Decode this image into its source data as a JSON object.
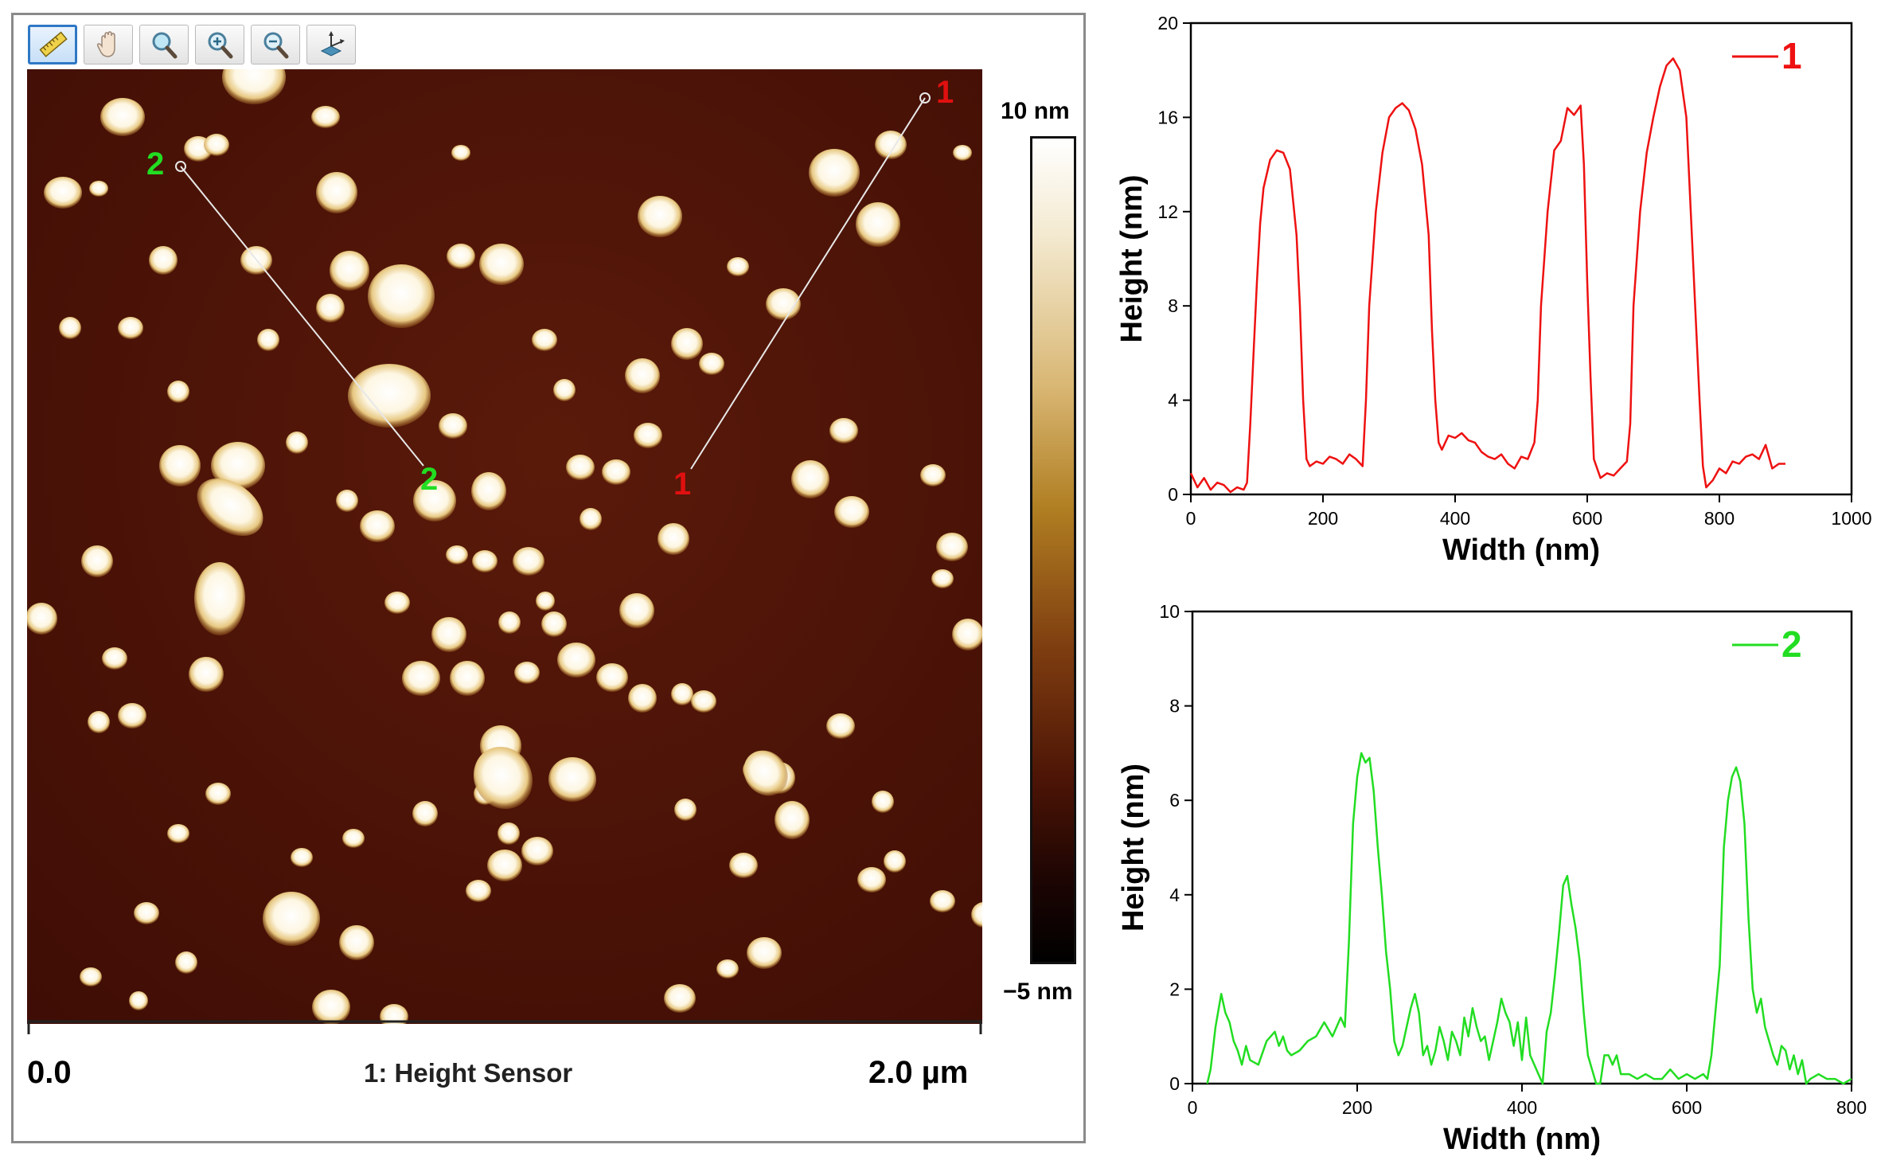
{
  "toolbar": {
    "tools": [
      {
        "icon": "ruler-icon",
        "label": "Section"
      },
      {
        "icon": "hand-icon",
        "label": "Pan"
      },
      {
        "icon": "magnifier-icon",
        "label": "Zoom"
      },
      {
        "icon": "zoom-in-icon",
        "label": "Zoom in"
      },
      {
        "icon": "zoom-out-icon",
        "label": "Zoom out"
      },
      {
        "icon": "axes-icon",
        "label": "3D view"
      }
    ]
  },
  "afm_image": {
    "section_markers": {
      "line1": {
        "start_label": "1",
        "end_label": "1",
        "color": "#e01010"
      },
      "line2": {
        "start_label": "2",
        "end_label": "2",
        "color": "#22dd22"
      }
    }
  },
  "colorbar": {
    "max_label": "10 nm",
    "min_label": "−5 nm"
  },
  "scale": {
    "start_label": "0.0",
    "end_label": "2.0 µm",
    "channel_label": "1: Height Sensor"
  },
  "chart_data": [
    {
      "type": "line",
      "title": "",
      "xlabel": "Width (nm)",
      "ylabel": "Height (nm)",
      "xlim": [
        0,
        1000
      ],
      "ylim": [
        0,
        20
      ],
      "xticks": [
        0,
        200,
        400,
        600,
        800,
        1000
      ],
      "yticks": [
        0,
        4,
        8,
        12,
        16,
        20
      ],
      "legend": {
        "label": "1",
        "position": "top-right"
      },
      "color": "#ee1111",
      "series": [
        {
          "name": "1",
          "points": [
            [
              0,
              0.9
            ],
            [
              10,
              0.3
            ],
            [
              20,
              0.7
            ],
            [
              30,
              0.2
            ],
            [
              40,
              0.5
            ],
            [
              50,
              0.4
            ],
            [
              60,
              0.1
            ],
            [
              70,
              0.3
            ],
            [
              80,
              0.2
            ],
            [
              85,
              0.5
            ],
            [
              90,
              3
            ],
            [
              95,
              6
            ],
            [
              100,
              9
            ],
            [
              105,
              11.5
            ],
            [
              110,
              13
            ],
            [
              120,
              14.2
            ],
            [
              130,
              14.6
            ],
            [
              140,
              14.5
            ],
            [
              150,
              13.8
            ],
            [
              160,
              11
            ],
            [
              165,
              8
            ],
            [
              170,
              4
            ],
            [
              175,
              1.5
            ],
            [
              180,
              1.2
            ],
            [
              190,
              1.4
            ],
            [
              200,
              1.3
            ],
            [
              210,
              1.6
            ],
            [
              220,
              1.5
            ],
            [
              230,
              1.3
            ],
            [
              240,
              1.7
            ],
            [
              250,
              1.5
            ],
            [
              260,
              1.2
            ],
            [
              265,
              4
            ],
            [
              270,
              8
            ],
            [
              280,
              12
            ],
            [
              290,
              14.5
            ],
            [
              300,
              16
            ],
            [
              310,
              16.4
            ],
            [
              320,
              16.6
            ],
            [
              330,
              16.3
            ],
            [
              340,
              15.5
            ],
            [
              350,
              14
            ],
            [
              360,
              11
            ],
            [
              365,
              7
            ],
            [
              370,
              4
            ],
            [
              375,
              2.2
            ],
            [
              380,
              1.9
            ],
            [
              390,
              2.5
            ],
            [
              400,
              2.4
            ],
            [
              410,
              2.6
            ],
            [
              420,
              2.3
            ],
            [
              430,
              2.2
            ],
            [
              440,
              1.8
            ],
            [
              450,
              1.6
            ],
            [
              460,
              1.5
            ],
            [
              470,
              1.7
            ],
            [
              480,
              1.3
            ],
            [
              490,
              1.1
            ],
            [
              500,
              1.6
            ],
            [
              510,
              1.5
            ],
            [
              520,
              2.2
            ],
            [
              525,
              4
            ],
            [
              530,
              8
            ],
            [
              540,
              12
            ],
            [
              550,
              14.6
            ],
            [
              560,
              15
            ],
            [
              570,
              16.4
            ],
            [
              580,
              16.1
            ],
            [
              590,
              16.5
            ],
            [
              595,
              14
            ],
            [
              600,
              9
            ],
            [
              605,
              5
            ],
            [
              610,
              1.5
            ],
            [
              620,
              0.7
            ],
            [
              630,
              0.9
            ],
            [
              640,
              0.8
            ],
            [
              650,
              1.1
            ],
            [
              660,
              1.4
            ],
            [
              665,
              3
            ],
            [
              670,
              8
            ],
            [
              680,
              12
            ],
            [
              690,
              14.5
            ],
            [
              700,
              16
            ],
            [
              710,
              17.3
            ],
            [
              720,
              18.2
            ],
            [
              730,
              18.5
            ],
            [
              740,
              18
            ],
            [
              750,
              16
            ],
            [
              760,
              10
            ],
            [
              770,
              4
            ],
            [
              775,
              1.2
            ],
            [
              780,
              0.3
            ],
            [
              790,
              0.6
            ],
            [
              800,
              1.1
            ],
            [
              810,
              0.9
            ],
            [
              820,
              1.4
            ],
            [
              830,
              1.3
            ],
            [
              840,
              1.6
            ],
            [
              850,
              1.7
            ],
            [
              860,
              1.5
            ],
            [
              870,
              2.1
            ],
            [
              875,
              1.6
            ],
            [
              880,
              1.1
            ],
            [
              890,
              1.3
            ],
            [
              900,
              1.3
            ]
          ]
        }
      ]
    },
    {
      "type": "line",
      "title": "",
      "xlabel": "Width (nm)",
      "ylabel": "Height (nm)",
      "xlim": [
        0,
        800
      ],
      "ylim": [
        0,
        10
      ],
      "xticks": [
        0,
        200,
        400,
        600,
        800
      ],
      "yticks": [
        0,
        2,
        4,
        6,
        8,
        10
      ],
      "legend": {
        "label": "2",
        "position": "top-right"
      },
      "color": "#22dd22",
      "series": [
        {
          "name": "2",
          "points": [
            [
              18,
              0
            ],
            [
              22,
              0.3
            ],
            [
              28,
              1.2
            ],
            [
              35,
              1.9
            ],
            [
              40,
              1.5
            ],
            [
              45,
              1.3
            ],
            [
              50,
              0.9
            ],
            [
              55,
              0.7
            ],
            [
              60,
              0.4
            ],
            [
              65,
              0.8
            ],
            [
              70,
              0.5
            ],
            [
              80,
              0.4
            ],
            [
              90,
              0.9
            ],
            [
              100,
              1.1
            ],
            [
              105,
              0.8
            ],
            [
              110,
              1.0
            ],
            [
              115,
              0.7
            ],
            [
              120,
              0.6
            ],
            [
              130,
              0.7
            ],
            [
              140,
              0.9
            ],
            [
              150,
              1.0
            ],
            [
              160,
              1.3
            ],
            [
              170,
              1.0
            ],
            [
              180,
              1.4
            ],
            [
              185,
              1.2
            ],
            [
              190,
              3
            ],
            [
              195,
              5.5
            ],
            [
              200,
              6.5
            ],
            [
              205,
              7.0
            ],
            [
              210,
              6.8
            ],
            [
              215,
              6.9
            ],
            [
              220,
              6.2
            ],
            [
              225,
              5.0
            ],
            [
              230,
              4.0
            ],
            [
              235,
              2.8
            ],
            [
              240,
              2.0
            ],
            [
              245,
              0.9
            ],
            [
              250,
              0.6
            ],
            [
              255,
              0.8
            ],
            [
              260,
              1.2
            ],
            [
              265,
              1.6
            ],
            [
              270,
              1.9
            ],
            [
              275,
              1.5
            ],
            [
              280,
              0.6
            ],
            [
              285,
              0.8
            ],
            [
              290,
              0.4
            ],
            [
              295,
              0.7
            ],
            [
              300,
              1.2
            ],
            [
              305,
              0.9
            ],
            [
              310,
              0.5
            ],
            [
              315,
              1.1
            ],
            [
              320,
              0.9
            ],
            [
              325,
              0.6
            ],
            [
              330,
              1.4
            ],
            [
              335,
              1.0
            ],
            [
              340,
              1.6
            ],
            [
              345,
              1.2
            ],
            [
              350,
              0.9
            ],
            [
              355,
              1.0
            ],
            [
              360,
              0.5
            ],
            [
              365,
              0.9
            ],
            [
              370,
              1.3
            ],
            [
              375,
              1.8
            ],
            [
              380,
              1.5
            ],
            [
              385,
              1.3
            ],
            [
              390,
              0.8
            ],
            [
              395,
              1.3
            ],
            [
              400,
              0.5
            ],
            [
              405,
              1.4
            ],
            [
              410,
              0.6
            ],
            [
              415,
              0.4
            ],
            [
              420,
              0.2
            ],
            [
              425,
              0
            ],
            [
              430,
              1.1
            ],
            [
              435,
              1.5
            ],
            [
              440,
              2.3
            ],
            [
              445,
              3.2
            ],
            [
              450,
              4.2
            ],
            [
              455,
              4.4
            ],
            [
              460,
              3.8
            ],
            [
              465,
              3.3
            ],
            [
              470,
              2.6
            ],
            [
              475,
              1.5
            ],
            [
              480,
              0.6
            ],
            [
              485,
              0.3
            ],
            [
              490,
              0
            ],
            [
              495,
              0
            ],
            [
              500,
              0.6
            ],
            [
              505,
              0.6
            ],
            [
              510,
              0.4
            ],
            [
              515,
              0.6
            ],
            [
              520,
              0.2
            ],
            [
              530,
              0.2
            ],
            [
              540,
              0.1
            ],
            [
              550,
              0.2
            ],
            [
              560,
              0.1
            ],
            [
              570,
              0.1
            ],
            [
              580,
              0.3
            ],
            [
              590,
              0.1
            ],
            [
              600,
              0.2
            ],
            [
              610,
              0.1
            ],
            [
              620,
              0.2
            ],
            [
              625,
              0.1
            ],
            [
              630,
              0.6
            ],
            [
              640,
              2.5
            ],
            [
              645,
              5
            ],
            [
              650,
              6
            ],
            [
              655,
              6.5
            ],
            [
              660,
              6.7
            ],
            [
              665,
              6.4
            ],
            [
              670,
              5.5
            ],
            [
              675,
              3.5
            ],
            [
              680,
              2.0
            ],
            [
              685,
              1.5
            ],
            [
              690,
              1.8
            ],
            [
              695,
              1.2
            ],
            [
              700,
              0.9
            ],
            [
              705,
              0.6
            ],
            [
              710,
              0.4
            ],
            [
              715,
              0.8
            ],
            [
              720,
              0.7
            ],
            [
              725,
              0.3
            ],
            [
              730,
              0.6
            ],
            [
              735,
              0.2
            ],
            [
              740,
              0.5
            ],
            [
              745,
              0
            ],
            [
              750,
              0.1
            ],
            [
              760,
              0.2
            ],
            [
              770,
              0.1
            ],
            [
              780,
              0.1
            ],
            [
              790,
              0
            ],
            [
              800,
              0.1
            ]
          ]
        }
      ]
    }
  ]
}
